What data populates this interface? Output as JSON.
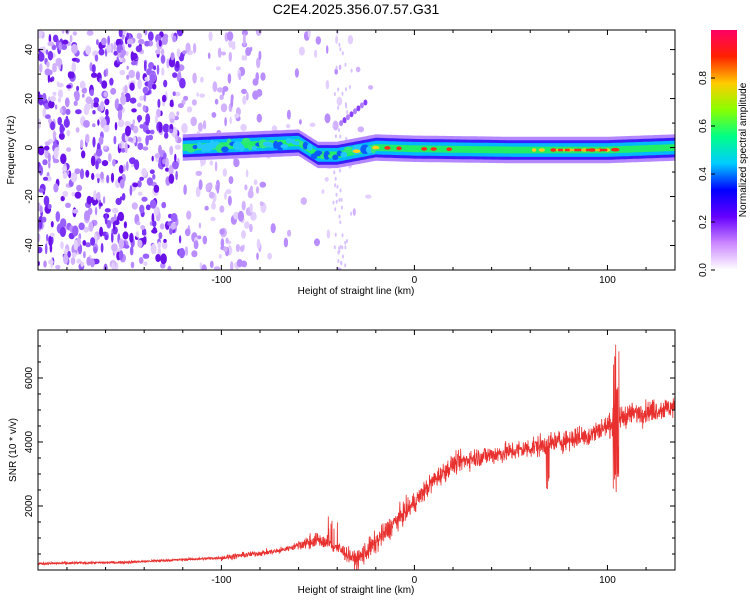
{
  "figure_title": "C2E4.2025.356.07.57.G31",
  "chart_data": [
    {
      "type": "heatmap",
      "title": "C2E4.2025.356.07.57.G31",
      "xlabel": "Height of straight line (km)",
      "ylabel": "Frequency (Hz)",
      "xlim": [
        -195,
        135
      ],
      "ylim": [
        -50,
        48
      ],
      "xticks": [
        -100,
        0,
        100
      ],
      "xtick_labels": [
        "-100",
        "0",
        "100"
      ],
      "yticks": [
        -40,
        -20,
        0,
        20,
        40
      ],
      "ytick_labels": [
        "-40",
        "-20",
        "0",
        "20",
        "40"
      ],
      "colorbar": {
        "label": "Normalized spectral amplitude",
        "range": [
          0.0,
          1.0
        ],
        "ticks": [
          0.0,
          0.2,
          0.4,
          0.6,
          0.8
        ],
        "tick_labels": [
          "0.0",
          "0.2",
          "0.4",
          "0.6",
          "0.8"
        ],
        "colormap": [
          "#ffffff",
          "#cc88ff",
          "#6600ff",
          "#0000ff",
          "#00ccff",
          "#00ff88",
          "#88ff00",
          "#ffcc00",
          "#ff2200",
          "#ff0066"
        ]
      },
      "signal_band": {
        "center_hz": [
          [
            -120,
            0
          ],
          [
            -90,
            1
          ],
          [
            -60,
            2
          ],
          [
            -50,
            -3
          ],
          [
            -40,
            -3
          ],
          [
            -20,
            0
          ],
          [
            0,
            -0.5
          ],
          [
            50,
            -1
          ],
          [
            100,
            -1
          ],
          [
            135,
            0
          ]
        ],
        "half_width_hz": 4
      },
      "noise_region_x_km": [
        -195,
        -80
      ]
    },
    {
      "type": "line",
      "xlabel": "Height of straight line (km)",
      "ylabel": "SNR (10 * v/v)",
      "xlim": [
        -195,
        135
      ],
      "ylim": [
        0,
        7500
      ],
      "xticks": [
        -100,
        0,
        100
      ],
      "xtick_labels": [
        "-100",
        "0",
        "100"
      ],
      "yticks": [
        2000,
        4000,
        6000
      ],
      "ytick_labels": [
        "2000",
        "4000",
        "6000"
      ],
      "series": [
        {
          "name": "SNR",
          "color": "#e8312f",
          "trend_x": [
            -195,
            -150,
            -100,
            -70,
            -50,
            -40,
            -30,
            -20,
            -10,
            0,
            10,
            20,
            30,
            50,
            70,
            90,
            100,
            110,
            135
          ],
          "trend_y": [
            200,
            240,
            380,
            600,
            950,
            700,
            300,
            850,
            1500,
            2100,
            2800,
            3300,
            3500,
            3700,
            3950,
            4200,
            4500,
            4850,
            5100
          ]
        }
      ]
    }
  ]
}
